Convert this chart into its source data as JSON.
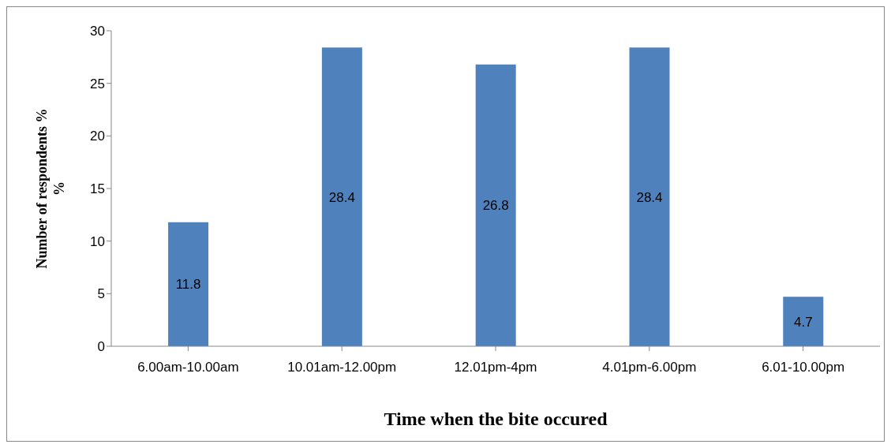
{
  "chart_data": {
    "type": "bar",
    "xlabel": "Time when the bite occured",
    "ylabel": "Number  of respondents  %\n%",
    "categories": [
      "6.00am-10.00am",
      "10.01am-12.00pm",
      "12.01pm-4pm",
      "4.01pm-6.00pm",
      "6.01-10.00pm"
    ],
    "values": [
      11.8,
      28.4,
      26.8,
      28.4,
      4.7
    ],
    "color": "#4f81bd",
    "ylim": [
      0,
      30
    ],
    "yticks": [
      0,
      5,
      10,
      15,
      20,
      25,
      30
    ],
    "grid": false,
    "data_labels": true
  }
}
